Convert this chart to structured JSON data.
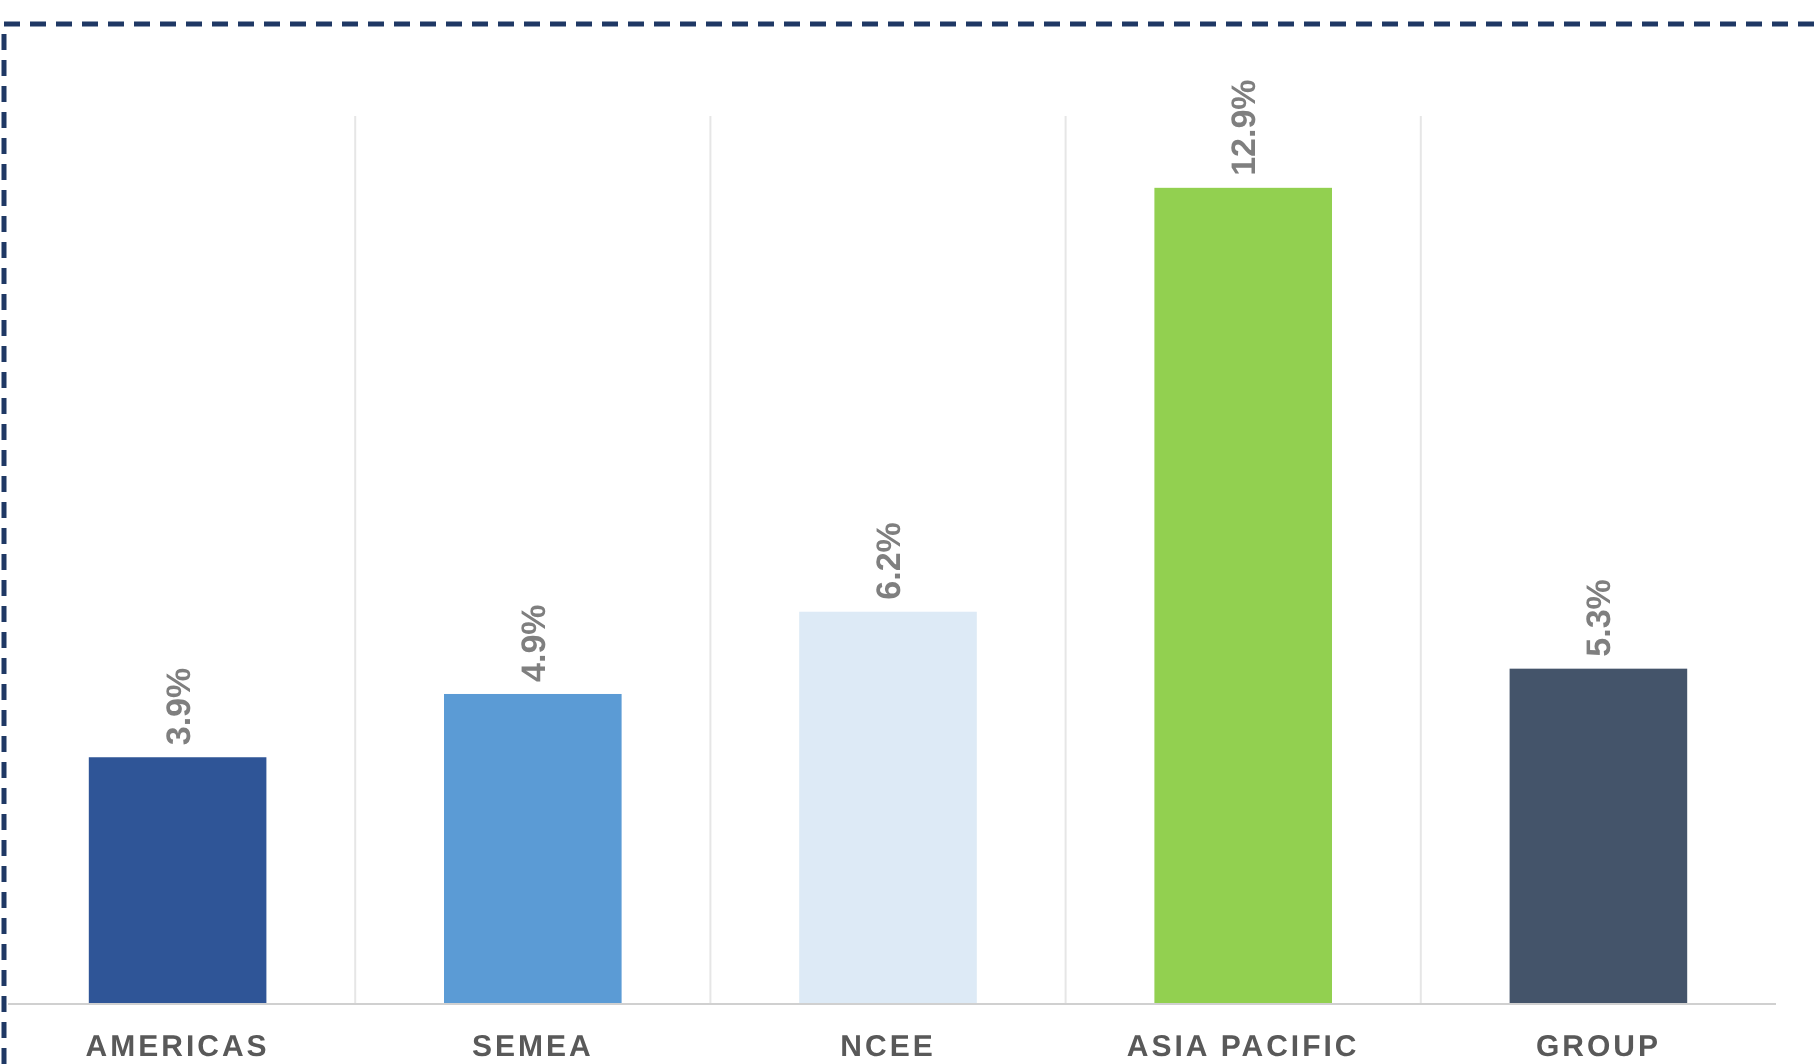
{
  "chart_data": {
    "type": "bar",
    "categories": [
      "AMERICAS",
      "SEMEA",
      "NCEE",
      "ASIA PACIFIC",
      "GROUP"
    ],
    "values": [
      3.9,
      4.9,
      6.2,
      12.9,
      5.3
    ],
    "colors": [
      "#2f5597",
      "#5b9bd5",
      "#ddeaf6",
      "#92d050",
      "#44546a"
    ],
    "value_labels": [
      "3.9%",
      "4.9%",
      "6.2%",
      "12.9%",
      "5.3%"
    ],
    "grid": "x"
  }
}
